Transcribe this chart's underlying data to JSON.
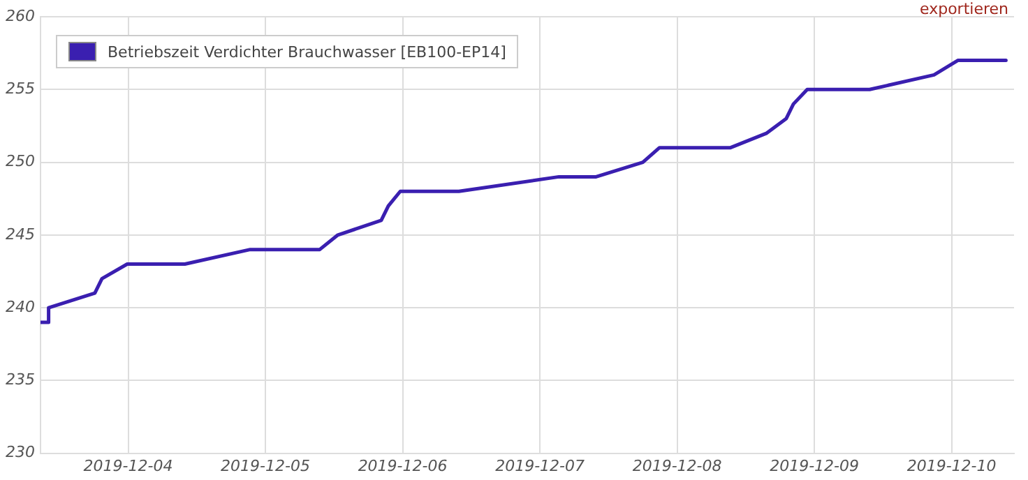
{
  "chart_data": {
    "type": "line",
    "annotations": [
      "exportieren"
    ],
    "series": [
      {
        "name": "Betriebszeit Verdichter Brauchwasser [EB100-EP14]",
        "color": "#3a1fb0",
        "x": [
          "2019-12-03T08:40",
          "2019-12-03T09:55",
          "2019-12-03T10:05",
          "2019-12-03T18:10",
          "2019-12-03T19:25",
          "2019-12-03T23:50",
          "2019-12-04T09:55",
          "2019-12-04T21:20",
          "2019-12-05T09:30",
          "2019-12-05T12:40",
          "2019-12-05T20:15",
          "2019-12-05T21:30",
          "2019-12-05T23:35",
          "2019-12-06T09:50",
          "2019-12-07T03:20",
          "2019-12-07T09:50",
          "2019-12-07T18:00",
          "2019-12-07T20:55",
          "2019-12-08T09:20",
          "2019-12-08T15:40",
          "2019-12-08T19:05",
          "2019-12-08T20:20",
          "2019-12-08T22:45",
          "2019-12-09T09:40",
          "2019-12-09T20:55",
          "2019-12-10T01:05",
          "2019-12-10T09:30"
        ],
        "values": [
          239,
          239,
          240,
          241,
          242,
          243,
          243,
          244,
          244,
          245,
          246,
          247,
          248,
          248,
          249,
          249,
          250,
          251,
          251,
          252,
          253,
          254,
          255,
          255,
          256,
          257,
          257
        ]
      }
    ],
    "xlim": [
      "2019-12-03T08:40",
      "2019-12-10T10:55"
    ],
    "xticks": [
      "2019-12-04",
      "2019-12-05",
      "2019-12-06",
      "2019-12-07",
      "2019-12-08",
      "2019-12-09",
      "2019-12-10"
    ],
    "ylim": [
      230,
      260
    ],
    "yticks": [
      230,
      235,
      240,
      245,
      250,
      255,
      260
    ],
    "grid": true,
    "legend": "top left",
    "marker": "none",
    "line_style": "solid"
  }
}
